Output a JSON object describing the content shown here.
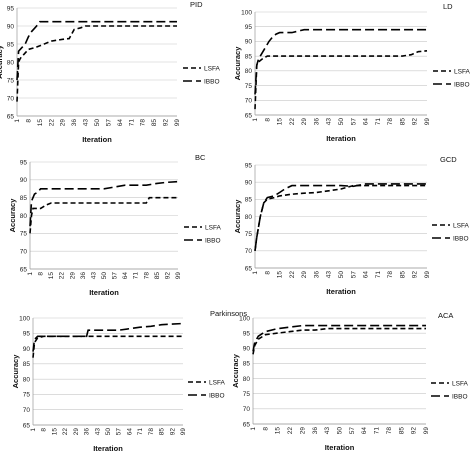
{
  "chart_data": [
    {
      "type": "line",
      "title": "PID",
      "xlabel": "Iteration",
      "ylabel": "Accuracy",
      "ylim": [
        65,
        95
      ],
      "yticks": [
        65,
        70,
        75,
        80,
        85,
        90,
        95
      ],
      "xlim": [
        1,
        99
      ],
      "xticks": [
        1,
        8,
        15,
        22,
        29,
        36,
        43,
        50,
        57,
        64,
        71,
        78,
        85,
        92,
        99
      ],
      "grid": "horizontal",
      "legend": "right",
      "series": [
        {
          "name": "LSFA",
          "style": "dash",
          "x": [
            1,
            2,
            3,
            5,
            8,
            12,
            15,
            22,
            29,
            33,
            36,
            40,
            43,
            50,
            57,
            99
          ],
          "y": [
            69,
            80,
            81,
            82,
            83.5,
            84,
            84.5,
            85.8,
            86.3,
            86.5,
            89,
            89.5,
            90,
            90,
            90,
            90
          ]
        },
        {
          "name": "IBBO",
          "style": "longdash",
          "x": [
            1,
            2,
            4,
            6,
            8,
            10,
            12,
            14,
            15,
            99
          ],
          "y": [
            75,
            83,
            84,
            85,
            87,
            88.5,
            89.5,
            90.5,
            91.2,
            91.2
          ]
        }
      ]
    },
    {
      "type": "line",
      "title": "LD",
      "xlabel": "Iteration",
      "ylabel": "Accuracy",
      "ylim": [
        65,
        100
      ],
      "yticks": [
        65,
        70,
        75,
        80,
        85,
        90,
        95,
        100
      ],
      "xlim": [
        1,
        99
      ],
      "xticks": [
        1,
        8,
        15,
        22,
        29,
        36,
        43,
        50,
        57,
        64,
        71,
        78,
        85,
        92,
        99
      ],
      "grid": "horizontal",
      "legend": "right",
      "series": [
        {
          "name": "LSFA",
          "style": "dash",
          "x": [
            1,
            2,
            3,
            5,
            8,
            15,
            22,
            50,
            85,
            90,
            92,
            94,
            99
          ],
          "y": [
            67,
            82,
            83,
            84,
            85,
            85,
            85,
            85,
            85,
            85.5,
            86,
            86.5,
            86.8
          ]
        },
        {
          "name": "IBBO",
          "style": "longdash",
          "x": [
            1,
            2,
            3,
            5,
            7,
            9,
            11,
            13,
            15,
            22,
            29,
            99
          ],
          "y": [
            72,
            82,
            84,
            86,
            88,
            90,
            91.5,
            92.5,
            93,
            93,
            94,
            94
          ]
        }
      ]
    },
    {
      "type": "line",
      "title": "BC",
      "xlabel": "Iteration",
      "ylabel": "Accuracy",
      "ylim": [
        65,
        95
      ],
      "yticks": [
        65,
        70,
        75,
        80,
        85,
        90,
        95
      ],
      "xlim": [
        1,
        99
      ],
      "xticks": [
        1,
        8,
        15,
        22,
        29,
        36,
        43,
        50,
        57,
        64,
        71,
        78,
        85,
        92,
        99
      ],
      "grid": "horizontal",
      "legend": "right",
      "series": [
        {
          "name": "LSFA",
          "style": "dash",
          "x": [
            1,
            2,
            3,
            8,
            12,
            15,
            78,
            80,
            99
          ],
          "y": [
            75,
            80,
            82,
            82,
            83,
            83.5,
            83.5,
            85,
            85
          ]
        },
        {
          "name": "IBBO",
          "style": "longdash",
          "x": [
            1,
            2,
            4,
            6,
            8,
            50,
            57,
            64,
            71,
            78,
            85,
            92,
            99
          ],
          "y": [
            77,
            84,
            86,
            86.5,
            87.5,
            87.5,
            88,
            88.5,
            88.5,
            88.5,
            89,
            89.3,
            89.5
          ]
        }
      ]
    },
    {
      "type": "line",
      "title": "GCD",
      "xlabel": "Iteration",
      "ylabel": "Accuracy",
      "ylim": [
        65,
        95
      ],
      "yticks": [
        65,
        70,
        75,
        80,
        85,
        90,
        95
      ],
      "xlim": [
        1,
        99
      ],
      "xticks": [
        1,
        8,
        15,
        22,
        29,
        36,
        43,
        50,
        57,
        64,
        71,
        78,
        85,
        92,
        99
      ],
      "grid": "horizontal",
      "legend": "right",
      "series": [
        {
          "name": "LSFA",
          "style": "dash",
          "x": [
            1,
            2,
            4,
            6,
            8,
            12,
            15,
            22,
            29,
            36,
            43,
            50,
            57,
            64,
            99
          ],
          "y": [
            70,
            74,
            80,
            84,
            85,
            85.5,
            86,
            86.5,
            86.8,
            87,
            87.5,
            88,
            89,
            89,
            89
          ]
        },
        {
          "name": "IBBO",
          "style": "longdash",
          "x": [
            1,
            2,
            4,
            6,
            8,
            12,
            15,
            18,
            22,
            29,
            36,
            43,
            50,
            57,
            64,
            99
          ],
          "y": [
            70,
            74,
            80,
            84,
            85.5,
            86,
            87,
            88,
            89,
            89,
            89,
            89,
            89,
            88.8,
            89.5,
            89.5
          ]
        }
      ]
    },
    {
      "type": "line",
      "title": "Parkinsons",
      "xlabel": "Iteration",
      "ylabel": "Accuracy",
      "ylim": [
        65,
        100
      ],
      "yticks": [
        65,
        70,
        75,
        80,
        85,
        90,
        95,
        100
      ],
      "xlim": [
        1,
        99
      ],
      "xticks": [
        1,
        8,
        15,
        22,
        29,
        36,
        43,
        50,
        57,
        64,
        71,
        78,
        85,
        92,
        99
      ],
      "grid": "horizontal",
      "legend": "right",
      "series": [
        {
          "name": "LSFA",
          "style": "dash",
          "x": [
            1,
            2,
            4,
            8,
            99
          ],
          "y": [
            87,
            92,
            93.5,
            94,
            94
          ]
        },
        {
          "name": "IBBO",
          "style": "longdash",
          "x": [
            1,
            2,
            4,
            8,
            36,
            37,
            57,
            64,
            71,
            78,
            85,
            92,
            99
          ],
          "y": [
            89,
            93,
            94,
            94,
            94,
            96,
            96,
            96.5,
            97,
            97.3,
            97.8,
            98,
            98.2
          ]
        }
      ]
    },
    {
      "type": "line",
      "title": "ACA",
      "xlabel": "Iteration",
      "ylabel": "Accuracy",
      "ylim": [
        65,
        100
      ],
      "yticks": [
        65,
        70,
        75,
        80,
        85,
        90,
        95,
        100
      ],
      "xlim": [
        1,
        99
      ],
      "xticks": [
        1,
        8,
        15,
        22,
        29,
        36,
        43,
        50,
        57,
        64,
        71,
        78,
        85,
        92,
        99
      ],
      "grid": "horizontal",
      "legend": "right",
      "series": [
        {
          "name": "LSFA",
          "style": "dash",
          "x": [
            1,
            2,
            4,
            8,
            15,
            22,
            29,
            36,
            43,
            99
          ],
          "y": [
            88,
            91,
            93,
            94.5,
            95,
            95.5,
            96,
            96,
            96.5,
            96.5
          ]
        },
        {
          "name": "IBBO",
          "style": "longdash",
          "x": [
            1,
            2,
            4,
            8,
            15,
            22,
            29,
            36,
            99
          ],
          "y": [
            89,
            92,
            94,
            95.5,
            96.5,
            97,
            97.5,
            97.5,
            97.5
          ]
        }
      ]
    }
  ]
}
